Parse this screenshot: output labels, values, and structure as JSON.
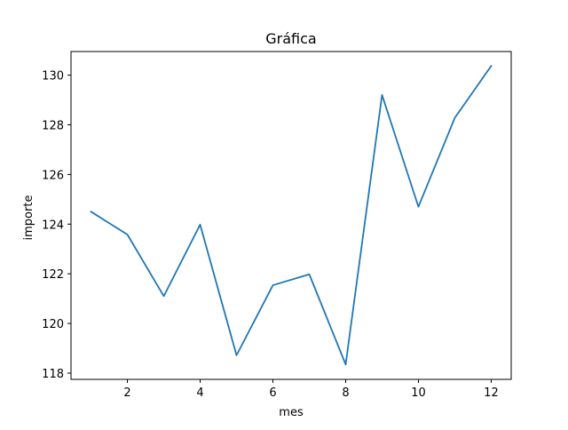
{
  "chart_data": {
    "type": "line",
    "title": "Gráfica",
    "xlabel": "mes",
    "ylabel": "importe",
    "x": [
      1,
      2,
      3,
      4,
      5,
      6,
      7,
      8,
      9,
      10,
      11,
      12
    ],
    "series": [
      {
        "values": [
          124.5,
          123.58,
          121.1,
          123.98,
          118.72,
          121.54,
          121.98,
          118.35,
          129.2,
          124.7,
          128.28,
          130.37
        ],
        "color": "#1f77b4"
      }
    ],
    "xlim": [
      0.45,
      12.55
    ],
    "ylim": [
      117.75,
      130.95
    ],
    "xticks": [
      2,
      4,
      6,
      8,
      10,
      12
    ],
    "yticks": [
      118,
      120,
      122,
      124,
      126,
      128,
      130
    ],
    "grid": false,
    "legend": "none"
  }
}
